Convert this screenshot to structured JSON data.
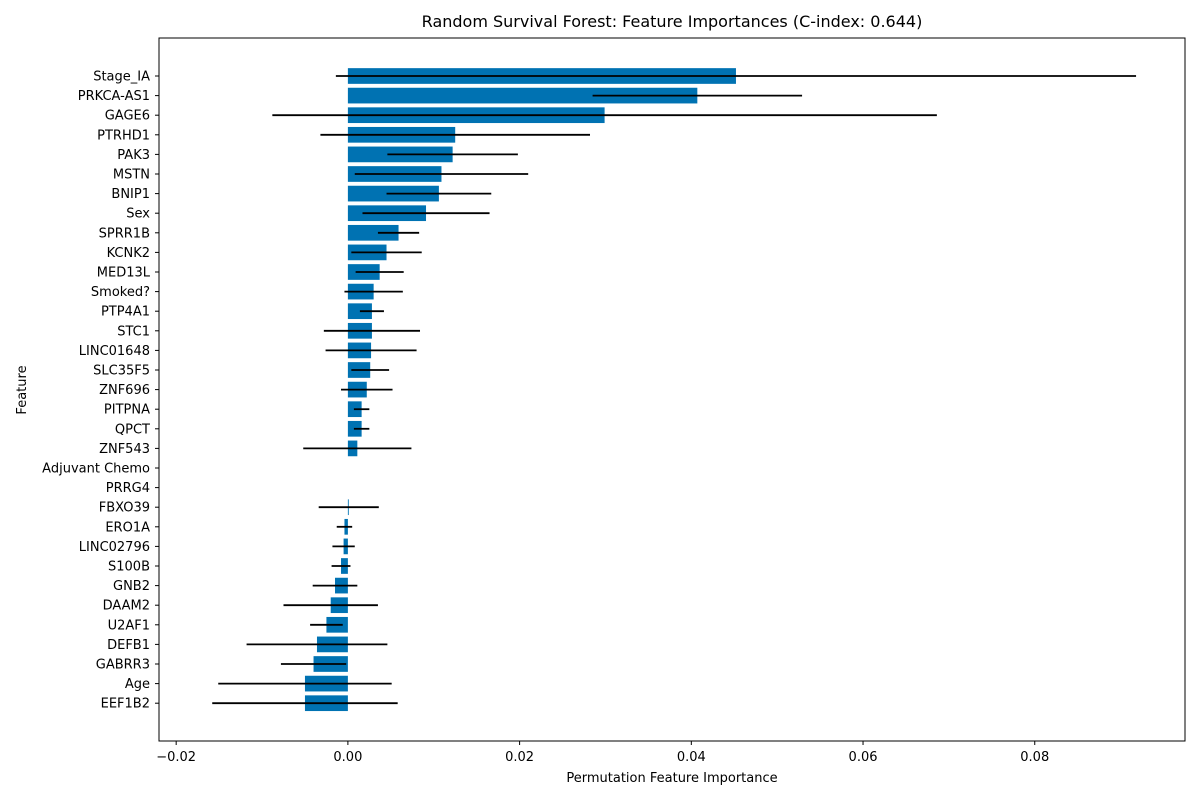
{
  "chart_data": {
    "type": "bar",
    "orientation": "horizontal",
    "title": "Random Survival Forest: Feature Importances (C-index: 0.644)",
    "xlabel": "Permutation Feature Importance",
    "ylabel": "Feature",
    "xlim": [
      -0.022,
      0.0975
    ],
    "xticks": [
      -0.02,
      0.0,
      0.02,
      0.04,
      0.06,
      0.08
    ],
    "xtick_labels": [
      "−0.02",
      "0.00",
      "0.02",
      "0.04",
      "0.06",
      "0.08"
    ],
    "grid": false,
    "legend": "none",
    "colors": {
      "bar": "#0072b2",
      "error_bar": "#000000",
      "axis": "#000000"
    },
    "categories": [
      "Stage_IA",
      "PRKCA-AS1",
      "GAGE6",
      "PTRHD1",
      "PAK3",
      "MSTN",
      "BNIP1",
      "Sex",
      "SPRR1B",
      "KCNK2",
      "MED13L",
      "Smoked?",
      "PTP4A1",
      "STC1",
      "LINC01648",
      "SLC35F5",
      "ZNF696",
      "PITPNA",
      "QPCT",
      "ZNF543",
      "Adjuvant Chemo",
      "PRRG4",
      "FBXO39",
      "ERO1A",
      "LINC02796",
      "S100B",
      "GNB2",
      "DAAM2",
      "U2AF1",
      "DEFB1",
      "GABRR3",
      "Age",
      "EEF1B2"
    ],
    "values": [
      0.0452,
      0.0407,
      0.0299,
      0.0125,
      0.0122,
      0.0109,
      0.0106,
      0.0091,
      0.0059,
      0.0045,
      0.0037,
      0.003,
      0.0028,
      0.0028,
      0.0027,
      0.0026,
      0.0022,
      0.0016,
      0.0016,
      0.0011,
      0.0,
      0.0,
      0.0001,
      -0.0004,
      -0.0005,
      -0.0008,
      -0.0015,
      -0.002,
      -0.0025,
      -0.0036,
      -0.004,
      -0.005,
      -0.005
    ],
    "errors": [
      0.0466,
      0.0122,
      0.0387,
      0.0157,
      0.0076,
      0.0101,
      0.0061,
      0.0074,
      0.0024,
      0.0041,
      0.0028,
      0.0034,
      0.0014,
      0.0056,
      0.0053,
      0.0022,
      0.003,
      0.0009,
      0.0009,
      0.0063,
      0.0,
      0.0,
      0.0035,
      0.0009,
      0.0013,
      0.0011,
      0.0026,
      0.0055,
      0.0019,
      0.0082,
      0.0038,
      0.0101,
      0.0108
    ]
  }
}
